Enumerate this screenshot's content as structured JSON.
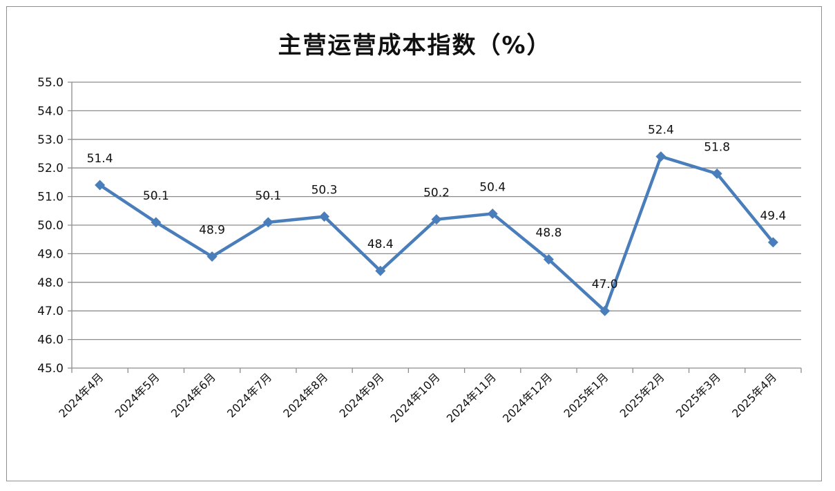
{
  "chart_data": {
    "type": "line",
    "title": "主营运营成本指数（%）",
    "xlabel": "",
    "ylabel": "",
    "categories": [
      "2024年4月",
      "2024年5月",
      "2024年6月",
      "2024年7月",
      "2024年8月",
      "2024年9月",
      "2024年10月",
      "2024年11月",
      "2024年12月",
      "2025年1月",
      "2025年2月",
      "2025年3月",
      "2025年4月"
    ],
    "series": [
      {
        "values": [
          51.4,
          50.1,
          48.9,
          50.1,
          50.3,
          48.4,
          50.2,
          50.4,
          48.8,
          47.0,
          52.4,
          51.8,
          49.4
        ]
      }
    ],
    "data_labels": [
      "51.4",
      "50.1",
      "48.9",
      "50.1",
      "50.3",
      "48.4",
      "50.2",
      "50.4",
      "48.8",
      "47.0",
      "52.4",
      "51.8",
      "49.4"
    ],
    "ylim": [
      45.0,
      55.0
    ],
    "ytick_labels": [
      "45.0",
      "46.0",
      "47.0",
      "48.0",
      "49.0",
      "50.0",
      "51.0",
      "52.0",
      "53.0",
      "54.0",
      "55.0"
    ],
    "grid": true,
    "legend": "none",
    "colors": {
      "line": "#4a7ebb",
      "grid": "#8c8c8c",
      "axis": "#8c8c8c"
    }
  }
}
